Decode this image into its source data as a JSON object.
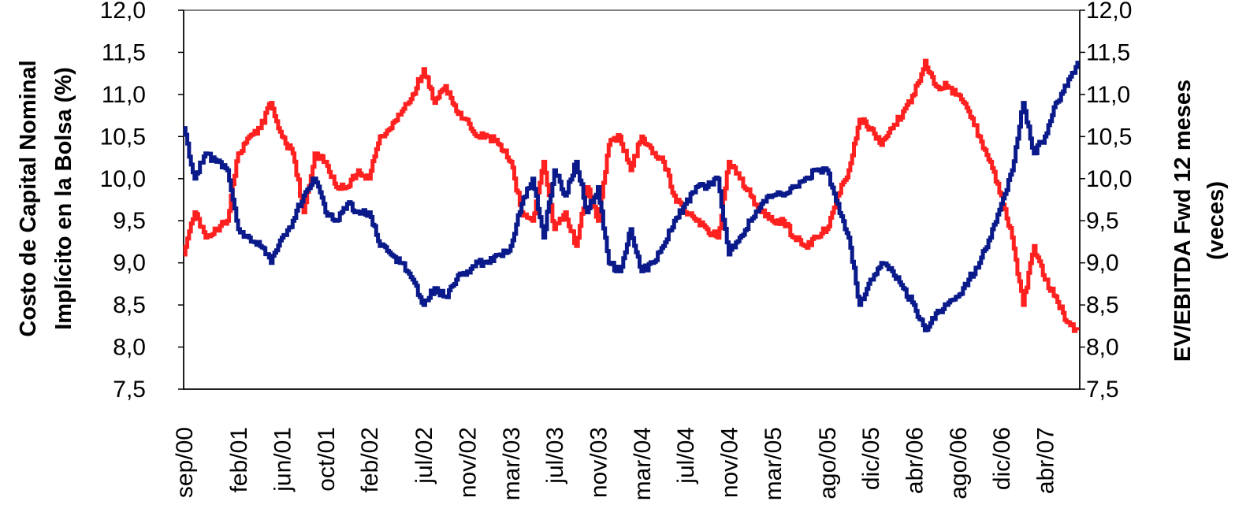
{
  "chart_data": {
    "type": "line",
    "left_axis": {
      "label_line1": "Costo de Capital Nominal",
      "label_line2": "Implícito en la Bolsa (%)",
      "range": [
        7.5,
        12.0
      ],
      "ticks": [
        "12,0",
        "11,5",
        "11,0",
        "10,5",
        "10,0",
        "9,5",
        "9,0",
        "8,5",
        "8,0",
        "7,5"
      ],
      "tick_values": [
        12.0,
        11.5,
        11.0,
        10.5,
        10.0,
        9.5,
        9.0,
        8.5,
        8.0,
        7.5
      ]
    },
    "right_axis": {
      "label_line1": "EV/EBITDA Fwd 12 meses",
      "label_line2": "(veces)",
      "range": [
        7.5,
        12.0
      ],
      "ticks": [
        "12,0",
        "11,5",
        "11,0",
        "10,5",
        "10,0",
        "9,5",
        "9,0",
        "8,5",
        "8,0",
        "7,5"
      ],
      "tick_values": [
        12.0,
        11.5,
        11.0,
        10.5,
        10.0,
        9.5,
        9.0,
        8.5,
        8.0,
        7.5
      ]
    },
    "x_range": [
      "2000-09",
      "2007-07"
    ],
    "x_ticks": [
      "sep/00",
      "feb/01",
      "jun/01",
      "oct/01",
      "feb/02",
      "jul/02",
      "nov/02",
      "mar/03",
      "jul/03",
      "nov/03",
      "mar/04",
      "jul/04",
      "nov/04",
      "mar/05",
      "ago/05",
      "dic/05",
      "abr/06",
      "ago/06",
      "dic/06",
      "abr/07"
    ],
    "x_tick_dates": [
      "2000-09",
      "2001-02",
      "2001-06",
      "2001-10",
      "2002-02",
      "2002-07",
      "2002-11",
      "2003-03",
      "2003-07",
      "2003-11",
      "2004-03",
      "2004-07",
      "2004-11",
      "2005-03",
      "2005-08",
      "2005-12",
      "2006-04",
      "2006-08",
      "2006-12",
      "2007-04"
    ],
    "grid": false,
    "legend": "none",
    "series": [
      {
        "axis": "left",
        "color": "#ff2020",
        "points": [
          [
            "2000-09",
            9.1
          ],
          [
            "2000-10",
            9.6
          ],
          [
            "2000-11",
            9.3
          ],
          [
            "2000-12",
            9.4
          ],
          [
            "2001-01",
            9.5
          ],
          [
            "2001-02",
            10.3
          ],
          [
            "2001-03",
            10.5
          ],
          [
            "2001-04",
            10.6
          ],
          [
            "2001-05",
            10.9
          ],
          [
            "2001-06",
            10.5
          ],
          [
            "2001-07",
            10.3
          ],
          [
            "2001-08",
            9.6
          ],
          [
            "2001-09",
            10.3
          ],
          [
            "2001-10",
            10.2
          ],
          [
            "2001-11",
            9.9
          ],
          [
            "2001-12",
            9.9
          ],
          [
            "2002-01",
            10.1
          ],
          [
            "2002-02",
            10.0
          ],
          [
            "2002-03",
            10.5
          ],
          [
            "2002-04",
            10.6
          ],
          [
            "2002-05",
            10.8
          ],
          [
            "2002-06",
            11.0
          ],
          [
            "2002-07",
            11.3
          ],
          [
            "2002-08",
            10.9
          ],
          [
            "2002-09",
            11.1
          ],
          [
            "2002-10",
            10.8
          ],
          [
            "2002-11",
            10.7
          ],
          [
            "2002-12",
            10.5
          ],
          [
            "2003-01",
            10.5
          ],
          [
            "2003-02",
            10.4
          ],
          [
            "2003-03",
            10.2
          ],
          [
            "2003-04",
            9.6
          ],
          [
            "2003-05",
            9.5
          ],
          [
            "2003-06",
            10.2
          ],
          [
            "2003-07",
            9.4
          ],
          [
            "2003-08",
            9.6
          ],
          [
            "2003-09",
            9.2
          ],
          [
            "2003-10",
            9.9
          ],
          [
            "2003-11",
            9.5
          ],
          [
            "2003-12",
            10.4
          ],
          [
            "2004-01",
            10.5
          ],
          [
            "2004-02",
            10.1
          ],
          [
            "2004-03",
            10.5
          ],
          [
            "2004-04",
            10.3
          ],
          [
            "2004-05",
            10.2
          ],
          [
            "2004-06",
            9.8
          ],
          [
            "2004-07",
            9.6
          ],
          [
            "2004-08",
            9.5
          ],
          [
            "2004-09",
            9.4
          ],
          [
            "2004-10",
            9.3
          ],
          [
            "2004-11",
            10.2
          ],
          [
            "2004-12",
            10.0
          ],
          [
            "2005-01",
            9.8
          ],
          [
            "2005-02",
            9.6
          ],
          [
            "2005-03",
            9.5
          ],
          [
            "2005-04",
            9.5
          ],
          [
            "2005-05",
            9.3
          ],
          [
            "2005-06",
            9.2
          ],
          [
            "2005-07",
            9.3
          ],
          [
            "2005-08",
            9.4
          ],
          [
            "2005-09",
            9.8
          ],
          [
            "2005-10",
            10.1
          ],
          [
            "2005-11",
            10.7
          ],
          [
            "2005-12",
            10.6
          ],
          [
            "2006-01",
            10.4
          ],
          [
            "2006-02",
            10.6
          ],
          [
            "2006-03",
            10.8
          ],
          [
            "2006-04",
            11.0
          ],
          [
            "2006-05",
            11.4
          ],
          [
            "2006-06",
            11.1
          ],
          [
            "2006-07",
            11.1
          ],
          [
            "2006-08",
            11.0
          ],
          [
            "2006-09",
            10.8
          ],
          [
            "2006-10",
            10.5
          ],
          [
            "2006-11",
            10.2
          ],
          [
            "2006-12",
            9.8
          ],
          [
            "2007-01",
            9.3
          ],
          [
            "2007-02",
            8.5
          ],
          [
            "2007-03",
            9.2
          ],
          [
            "2007-04",
            8.8
          ],
          [
            "2007-05",
            8.6
          ],
          [
            "2007-06",
            8.3
          ],
          [
            "2007-07",
            8.2
          ]
        ]
      },
      {
        "axis": "right",
        "color": "#0a1a8a",
        "points": [
          [
            "2000-09",
            10.6
          ],
          [
            "2000-10",
            10.0
          ],
          [
            "2000-11",
            10.3
          ],
          [
            "2000-12",
            10.2
          ],
          [
            "2001-01",
            10.1
          ],
          [
            "2001-02",
            9.4
          ],
          [
            "2001-03",
            9.3
          ],
          [
            "2001-04",
            9.2
          ],
          [
            "2001-05",
            9.0
          ],
          [
            "2001-06",
            9.3
          ],
          [
            "2001-07",
            9.5
          ],
          [
            "2001-08",
            9.8
          ],
          [
            "2001-09",
            10.0
          ],
          [
            "2001-10",
            9.6
          ],
          [
            "2001-11",
            9.5
          ],
          [
            "2001-12",
            9.7
          ],
          [
            "2002-01",
            9.6
          ],
          [
            "2002-02",
            9.6
          ],
          [
            "2002-03",
            9.2
          ],
          [
            "2002-04",
            9.1
          ],
          [
            "2002-05",
            9.0
          ],
          [
            "2002-06",
            8.8
          ],
          [
            "2002-07",
            8.5
          ],
          [
            "2002-08",
            8.7
          ],
          [
            "2002-09",
            8.6
          ],
          [
            "2002-10",
            8.8
          ],
          [
            "2002-11",
            8.9
          ],
          [
            "2002-12",
            9.0
          ],
          [
            "2003-01",
            9.0
          ],
          [
            "2003-02",
            9.1
          ],
          [
            "2003-03",
            9.2
          ],
          [
            "2003-04",
            9.7
          ],
          [
            "2003-05",
            10.0
          ],
          [
            "2003-06",
            9.3
          ],
          [
            "2003-07",
            10.1
          ],
          [
            "2003-08",
            9.8
          ],
          [
            "2003-09",
            10.2
          ],
          [
            "2003-10",
            9.6
          ],
          [
            "2003-11",
            9.9
          ],
          [
            "2003-12",
            9.0
          ],
          [
            "2004-01",
            8.9
          ],
          [
            "2004-02",
            9.4
          ],
          [
            "2004-03",
            8.9
          ],
          [
            "2004-04",
            9.0
          ],
          [
            "2004-05",
            9.2
          ],
          [
            "2004-06",
            9.5
          ],
          [
            "2004-07",
            9.7
          ],
          [
            "2004-08",
            9.9
          ],
          [
            "2004-09",
            9.9
          ],
          [
            "2004-10",
            10.0
          ],
          [
            "2004-11",
            9.1
          ],
          [
            "2004-12",
            9.3
          ],
          [
            "2005-01",
            9.5
          ],
          [
            "2005-02",
            9.7
          ],
          [
            "2005-03",
            9.8
          ],
          [
            "2005-04",
            9.8
          ],
          [
            "2005-05",
            9.9
          ],
          [
            "2005-06",
            10.0
          ],
          [
            "2005-07",
            10.1
          ],
          [
            "2005-08",
            10.1
          ],
          [
            "2005-09",
            9.7
          ],
          [
            "2005-10",
            9.3
          ],
          [
            "2005-11",
            8.5
          ],
          [
            "2005-12",
            8.8
          ],
          [
            "2006-01",
            9.0
          ],
          [
            "2006-02",
            8.9
          ],
          [
            "2006-03",
            8.7
          ],
          [
            "2006-04",
            8.5
          ],
          [
            "2006-05",
            8.2
          ],
          [
            "2006-06",
            8.4
          ],
          [
            "2006-07",
            8.5
          ],
          [
            "2006-08",
            8.6
          ],
          [
            "2006-09",
            8.8
          ],
          [
            "2006-10",
            9.0
          ],
          [
            "2006-11",
            9.3
          ],
          [
            "2006-12",
            9.7
          ],
          [
            "2007-01",
            10.1
          ],
          [
            "2007-02",
            10.9
          ],
          [
            "2007-03",
            10.3
          ],
          [
            "2007-04",
            10.5
          ],
          [
            "2007-05",
            10.9
          ],
          [
            "2007-06",
            11.1
          ],
          [
            "2007-07",
            11.4
          ]
        ]
      }
    ]
  }
}
